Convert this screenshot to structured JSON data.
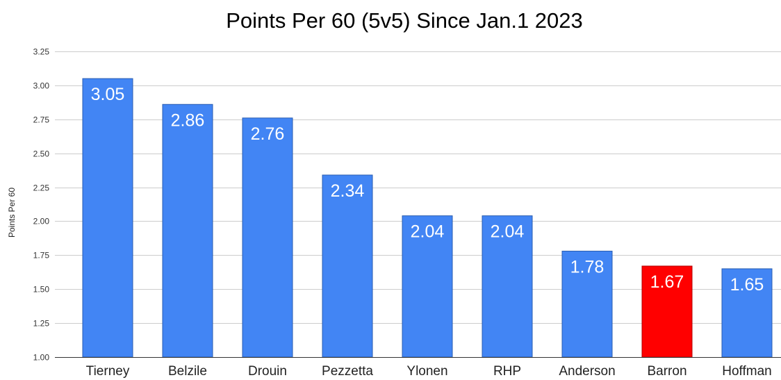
{
  "chart_data": {
    "type": "bar",
    "title": "Points Per 60 (5v5) Since Jan.1 2023",
    "xlabel": "",
    "ylabel": "Points Per 60",
    "ylim": [
      1.0,
      3.25
    ],
    "yticks": [
      "1.00",
      "1.25",
      "1.50",
      "1.75",
      "2.00",
      "2.25",
      "2.50",
      "2.75",
      "3.00",
      "3.25"
    ],
    "categories": [
      "Tierney",
      "Belzile",
      "Drouin",
      "Pezzetta",
      "Ylonen",
      "RHP",
      "Anderson",
      "Barron",
      "Hoffman"
    ],
    "values": [
      3.05,
      2.86,
      2.76,
      2.34,
      2.04,
      2.04,
      1.78,
      1.67,
      1.65
    ],
    "data_labels": [
      "3.05",
      "2.86",
      "2.76",
      "2.34",
      "2.04",
      "2.04",
      "1.78",
      "1.67",
      "1.65"
    ],
    "grid": true,
    "legend": "none",
    "colors": {
      "default_bar": "#4285f4",
      "default_border": "#2a5db0",
      "highlight_bar": "#ff0000",
      "highlight_border": "#b00000"
    },
    "highlight_category": "Barron"
  }
}
